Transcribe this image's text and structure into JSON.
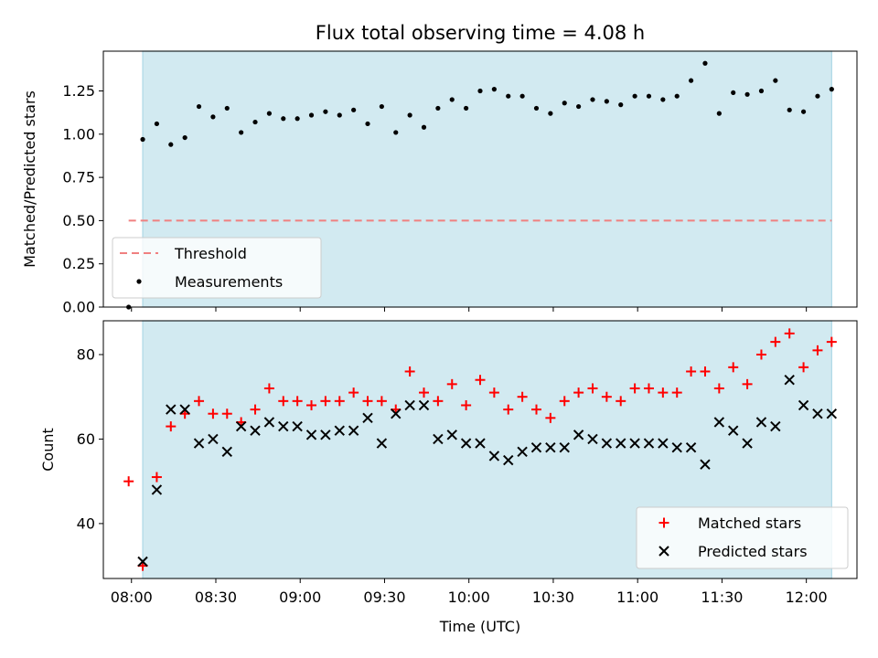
{
  "chart_data": [
    {
      "type": "scatter",
      "title": "Flux total observing time = 4.08 h",
      "xlabel": "",
      "ylabel": "Matched/Predicted stars",
      "ylim": [
        0,
        1.48
      ],
      "yticks": [
        "0.00",
        "0.25",
        "0.50",
        "0.75",
        "1.00",
        "1.25"
      ],
      "threshold": {
        "name": "Threshold",
        "value": 0.5,
        "color": "#f08080",
        "x_range": [
          "07:59",
          "12:09"
        ]
      },
      "shaded_window": {
        "start": "08:04",
        "end": "12:09",
        "color": "#add8e6"
      },
      "legend_position": "lower-left",
      "series": [
        {
          "name": "Measurements",
          "color": "#000000",
          "x": [
            "07:59",
            "08:04",
            "08:09",
            "08:14",
            "08:19",
            "08:24",
            "08:29",
            "08:34",
            "08:39",
            "08:44",
            "08:49",
            "08:54",
            "08:59",
            "09:04",
            "09:09",
            "09:14",
            "09:19",
            "09:24",
            "09:29",
            "09:34",
            "09:39",
            "09:44",
            "09:49",
            "09:54",
            "09:59",
            "10:04",
            "10:09",
            "10:14",
            "10:19",
            "10:24",
            "10:29",
            "10:34",
            "10:39",
            "10:44",
            "10:49",
            "10:54",
            "10:59",
            "11:04",
            "11:09",
            "11:14",
            "11:19",
            "11:24",
            "11:29",
            "11:34",
            "11:39",
            "11:44",
            "11:49",
            "11:54",
            "11:59",
            "12:04",
            "12:09"
          ],
          "y": [
            0.0,
            0.97,
            1.06,
            0.94,
            0.98,
            1.16,
            1.1,
            1.15,
            1.01,
            1.07,
            1.12,
            1.09,
            1.09,
            1.11,
            1.13,
            1.11,
            1.14,
            1.06,
            1.16,
            1.01,
            1.11,
            1.04,
            1.15,
            1.2,
            1.15,
            1.25,
            1.26,
            1.22,
            1.22,
            1.15,
            1.12,
            1.18,
            1.16,
            1.2,
            1.19,
            1.17,
            1.22,
            1.22,
            1.2,
            1.22,
            1.31,
            1.41,
            1.12,
            1.24,
            1.23,
            1.25,
            1.31,
            1.14,
            1.13,
            1.22,
            1.26
          ]
        }
      ]
    },
    {
      "type": "scatter",
      "title": "",
      "xlabel": "Time (UTC)",
      "ylabel": "Count",
      "ylim": [
        27,
        88
      ],
      "yticks": [
        "40",
        "60",
        "80"
      ],
      "xlim": [
        "07:50",
        "12:18"
      ],
      "xticks": [
        "08:00",
        "08:30",
        "09:00",
        "09:30",
        "10:00",
        "10:30",
        "11:00",
        "11:30",
        "12:00"
      ],
      "shaded_window": {
        "start": "08:04",
        "end": "12:09",
        "color": "#add8e6"
      },
      "legend_position": "lower-right",
      "series": [
        {
          "name": "Matched stars",
          "marker": "+",
          "color": "#ff0000",
          "x": [
            "07:59",
            "08:04",
            "08:09",
            "08:14",
            "08:19",
            "08:24",
            "08:29",
            "08:34",
            "08:39",
            "08:44",
            "08:49",
            "08:54",
            "08:59",
            "09:04",
            "09:09",
            "09:14",
            "09:19",
            "09:24",
            "09:29",
            "09:34",
            "09:39",
            "09:44",
            "09:49",
            "09:54",
            "09:59",
            "10:04",
            "10:09",
            "10:14",
            "10:19",
            "10:24",
            "10:29",
            "10:34",
            "10:39",
            "10:44",
            "10:49",
            "10:54",
            "10:59",
            "11:04",
            "11:09",
            "11:14",
            "11:19",
            "11:24",
            "11:29",
            "11:34",
            "11:39",
            "11:44",
            "11:49",
            "11:54",
            "11:59",
            "12:04",
            "12:09"
          ],
          "y": [
            50,
            30,
            51,
            63,
            66,
            69,
            66,
            66,
            64,
            67,
            72,
            69,
            69,
            68,
            69,
            69,
            71,
            69,
            69,
            67,
            76,
            71,
            69,
            73,
            68,
            74,
            71,
            67,
            70,
            67,
            65,
            69,
            71,
            72,
            70,
            69,
            72,
            72,
            71,
            71,
            76,
            76,
            72,
            77,
            73,
            80,
            83,
            85,
            77,
            81,
            83
          ]
        },
        {
          "name": "Predicted stars",
          "marker": "x",
          "color": "#000000",
          "x": [
            "08:04",
            "08:09",
            "08:14",
            "08:19",
            "08:24",
            "08:29",
            "08:34",
            "08:39",
            "08:44",
            "08:49",
            "08:54",
            "08:59",
            "09:04",
            "09:09",
            "09:14",
            "09:19",
            "09:24",
            "09:29",
            "09:34",
            "09:39",
            "09:44",
            "09:49",
            "09:54",
            "09:59",
            "10:04",
            "10:09",
            "10:14",
            "10:19",
            "10:24",
            "10:29",
            "10:34",
            "10:39",
            "10:44",
            "10:49",
            "10:54",
            "10:59",
            "11:04",
            "11:09",
            "11:14",
            "11:19",
            "11:24",
            "11:29",
            "11:34",
            "11:39",
            "11:44",
            "11:49",
            "11:54",
            "11:59",
            "12:04",
            "12:09"
          ],
          "y": [
            31,
            48,
            67,
            67,
            59,
            60,
            57,
            63,
            62,
            64,
            63,
            63,
            61,
            61,
            62,
            62,
            65,
            59,
            66,
            68,
            68,
            60,
            61,
            59,
            59,
            56,
            55,
            57,
            58,
            58,
            58,
            61,
            60,
            59,
            59,
            59,
            59,
            59,
            58,
            58,
            54,
            64,
            62,
            59,
            64,
            63,
            74,
            68,
            66,
            66
          ]
        }
      ]
    }
  ]
}
